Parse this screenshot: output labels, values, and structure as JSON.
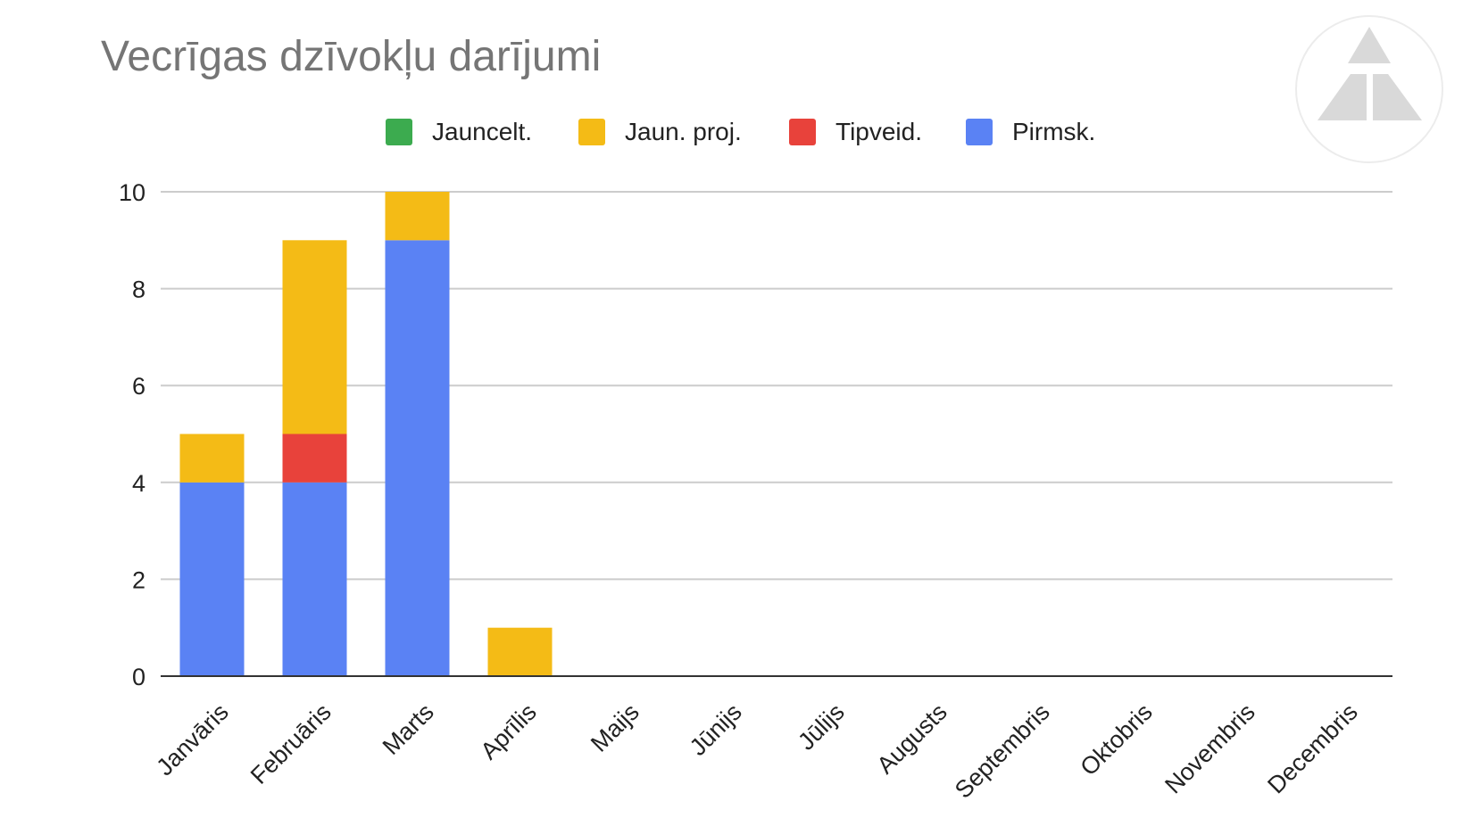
{
  "chart_data": {
    "type": "bar",
    "stacked": true,
    "title": "Vecrīgas dzīvokļu darījumi",
    "xlabel": "",
    "ylabel": "",
    "ylim": [
      0,
      10
    ],
    "yticks": [
      "0",
      "2",
      "4",
      "6",
      "8",
      "10"
    ],
    "grid": true,
    "legend_position": "top",
    "categories": [
      "Janvāris",
      "Februāris",
      "Marts",
      "Aprīlis",
      "Maijs",
      "Jūnijs",
      "Jūlijs",
      "Augusts",
      "Septembris",
      "Oktobris",
      "Novembris",
      "Decembris"
    ],
    "series": [
      {
        "name": "Jauncelt.",
        "color": "#3cab4f",
        "values": [
          0,
          0,
          0,
          0,
          0,
          0,
          0,
          0,
          0,
          0,
          0,
          0
        ]
      },
      {
        "name": "Jaun. proj.",
        "color": "#f4bb16",
        "values": [
          1,
          4,
          1,
          1,
          0,
          0,
          0,
          0,
          0,
          0,
          0,
          0
        ]
      },
      {
        "name": "Tipveid.",
        "color": "#e8423b",
        "values": [
          0,
          1,
          0,
          0,
          0,
          0,
          0,
          0,
          0,
          0,
          0,
          0
        ]
      },
      {
        "name": "Pirmsk.",
        "color": "#5a82f4",
        "values": [
          4,
          4,
          9,
          0,
          0,
          0,
          0,
          0,
          0,
          0,
          0,
          0
        ]
      }
    ],
    "stack_order": [
      "Pirmsk.",
      "Tipveid.",
      "Jaun. proj.",
      "Jauncelt."
    ]
  },
  "logo": {
    "icon": "triangle-logo-icon",
    "color": "#d9d9d9"
  }
}
